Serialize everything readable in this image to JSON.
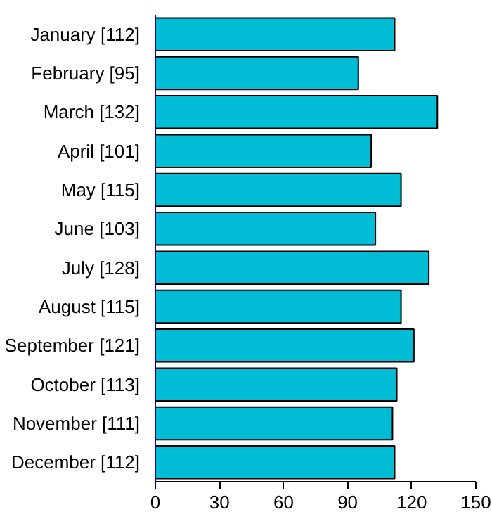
{
  "chart_data": {
    "type": "bar",
    "orientation": "horizontal",
    "categories": [
      "January [112]",
      "February [95]",
      "March [132]",
      "April [101]",
      "May [115]",
      "June [103]",
      "July [128]",
      "August [115]",
      "September [121]",
      "October [113]",
      "November [111]",
      "December [112]"
    ],
    "values": [
      112,
      95,
      132,
      101,
      115,
      103,
      128,
      115,
      121,
      113,
      111,
      112
    ],
    "color": "#00bcd4",
    "xlim": [
      0,
      150
    ],
    "xticks": [
      0,
      30,
      60,
      90,
      120,
      150
    ],
    "grid": false
  }
}
